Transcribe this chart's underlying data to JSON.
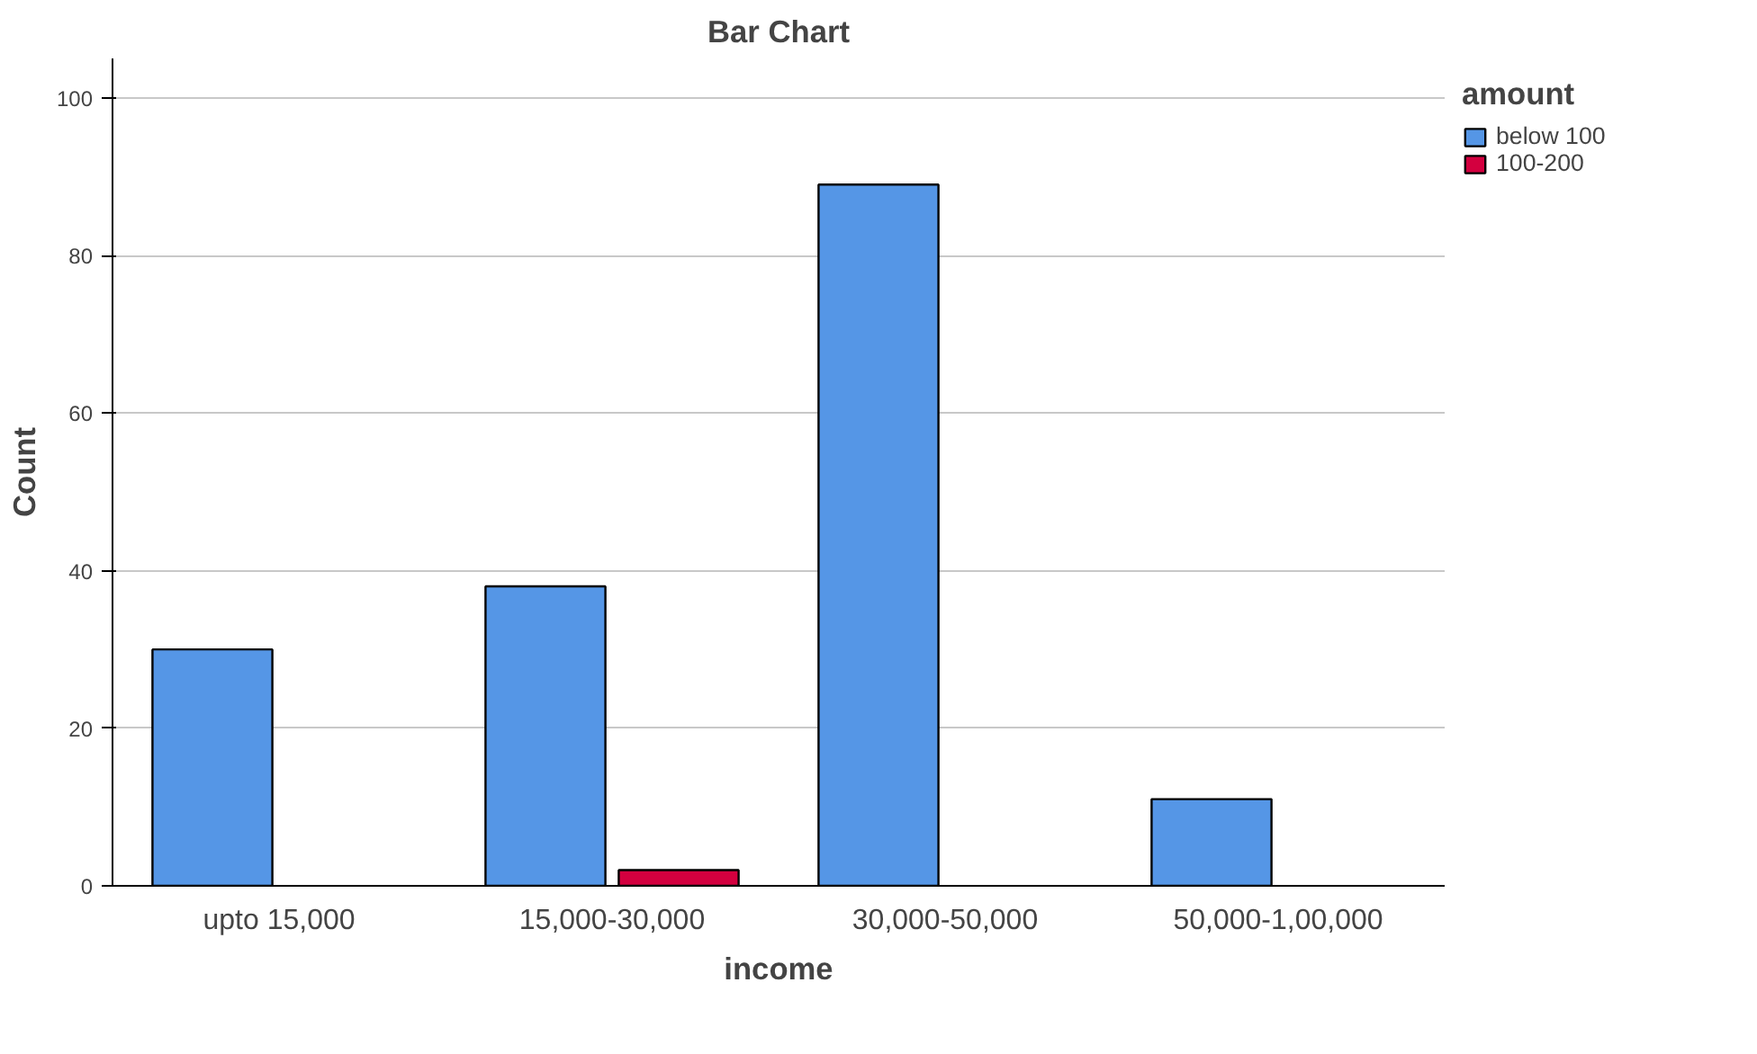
{
  "chart_data": {
    "type": "bar",
    "title": "Bar Chart",
    "xlabel": "income",
    "ylabel": "Count",
    "legend_title": "amount",
    "categories": [
      "upto 15,000",
      "15,000-30,000",
      "30,000-50,000",
      "50,000-1,00,000"
    ],
    "series": [
      {
        "name": "below 100",
        "color": "#5596e6",
        "values": [
          30,
          38,
          89,
          11
        ]
      },
      {
        "name": "100-200",
        "color": "#d3003f",
        "values": [
          null,
          2,
          null,
          null
        ]
      }
    ],
    "ylim": [
      0,
      105
    ],
    "yticks": [
      0,
      20,
      40,
      60,
      80,
      100
    ],
    "grid": "y",
    "legend": "top right"
  }
}
